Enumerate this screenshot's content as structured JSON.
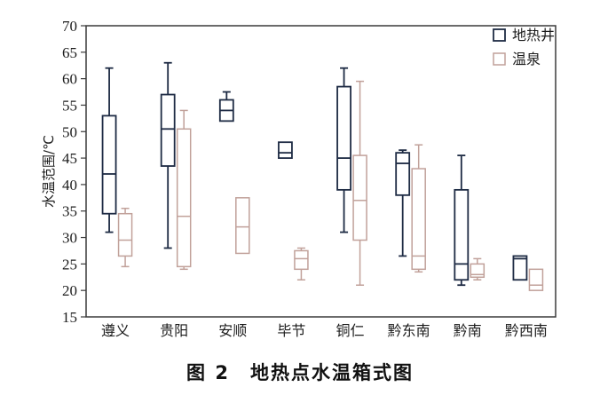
{
  "figure": {
    "caption": "图 2　地热点水温箱式图"
  },
  "colors": {
    "axis": "#3a3a3a",
    "text": "#1c1c1c",
    "background": "#ffffff",
    "well": "#1e2b44",
    "spring": "#c1a19a"
  },
  "chart_data": {
    "type": "boxplot",
    "title": "图 2　地热点水温箱式图",
    "xlabel": "",
    "ylabel": "水温范围/℃",
    "ylim": [
      15,
      70
    ],
    "ytick_step": 5,
    "yticks": [
      70,
      65,
      60,
      55,
      50,
      45,
      40,
      35,
      30,
      25,
      20,
      15
    ],
    "grid": false,
    "legend_position": "top-right",
    "categories": [
      "遵义",
      "贵阳",
      "安顺",
      "毕节",
      "铜仁",
      "黔东南",
      "黔南",
      "黔西南"
    ],
    "series": [
      {
        "name": "地热井",
        "color": "#1e2b44",
        "boxes": [
          {
            "low": 31,
            "q1": 34.5,
            "median": 42,
            "q3": 53,
            "high": 62
          },
          {
            "low": 28,
            "q1": 43.5,
            "median": 50.5,
            "q3": 57,
            "high": 63
          },
          {
            "low": 52,
            "q1": 52,
            "median": 54,
            "q3": 56,
            "high": 57.5
          },
          {
            "low": 45,
            "q1": 45,
            "median": 46,
            "q3": 48,
            "high": 48
          },
          {
            "low": 31,
            "q1": 39,
            "median": 45,
            "q3": 58.5,
            "high": 62
          },
          {
            "low": 26.5,
            "q1": 38,
            "median": 44,
            "q3": 46,
            "high": 46.5
          },
          {
            "low": 21,
            "q1": 22,
            "median": 25,
            "q3": 39,
            "high": 45.5
          },
          {
            "low": 22,
            "q1": 22,
            "median": 26,
            "q3": 26.5,
            "high": 26.5
          }
        ]
      },
      {
        "name": "温泉",
        "color": "#c1a19a",
        "boxes": [
          {
            "low": 24.5,
            "q1": 26.5,
            "median": 29.5,
            "q3": 34.5,
            "high": 35.5
          },
          {
            "low": 24,
            "q1": 24.5,
            "median": 34,
            "q3": 50.5,
            "high": 54
          },
          {
            "low": 27,
            "q1": 27,
            "median": 32,
            "q3": 37.5,
            "high": 37.5
          },
          {
            "low": 22,
            "q1": 24,
            "median": 26,
            "q3": 27.5,
            "high": 28
          },
          {
            "low": 21,
            "q1": 29.5,
            "median": 37,
            "q3": 45.5,
            "high": 59.5
          },
          {
            "low": 23.5,
            "q1": 24,
            "median": 26.5,
            "q3": 43,
            "high": 47.5
          },
          {
            "low": 22,
            "q1": 22.5,
            "median": 23,
            "q3": 25,
            "high": 26
          },
          {
            "low": 20,
            "q1": 20,
            "median": 21,
            "q3": 24,
            "high": 24
          }
        ]
      }
    ]
  }
}
